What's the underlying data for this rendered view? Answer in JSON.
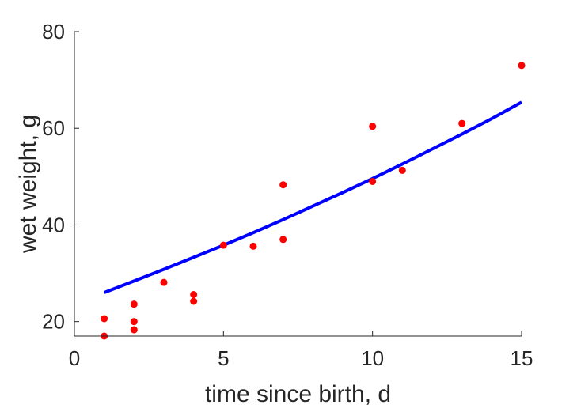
{
  "chart_data": {
    "type": "scatter",
    "title": "",
    "xlabel": "time since birth, d",
    "ylabel": "wet weight, g",
    "xlim": [
      0,
      15
    ],
    "ylim": [
      17,
      80
    ],
    "xticks": [
      0,
      5,
      10,
      15
    ],
    "yticks": [
      20,
      40,
      60,
      80
    ],
    "grid": false,
    "legend": "none",
    "series": [
      {
        "kind": "scatter",
        "color": "#ff0000",
        "points": [
          {
            "x": 1,
            "y": 20.6
          },
          {
            "x": 1,
            "y": 17.0
          },
          {
            "x": 2,
            "y": 23.6
          },
          {
            "x": 2,
            "y": 20.0
          },
          {
            "x": 2,
            "y": 18.3
          },
          {
            "x": 3,
            "y": 28.1
          },
          {
            "x": 4,
            "y": 25.6
          },
          {
            "x": 4,
            "y": 24.2
          },
          {
            "x": 5,
            "y": 35.8
          },
          {
            "x": 6,
            "y": 35.6
          },
          {
            "x": 7,
            "y": 48.3
          },
          {
            "x": 7,
            "y": 37.0
          },
          {
            "x": 10,
            "y": 60.4
          },
          {
            "x": 10,
            "y": 49.0
          },
          {
            "x": 11,
            "y": 51.3
          },
          {
            "x": 13,
            "y": 61.0
          },
          {
            "x": 15,
            "y": 73.0
          }
        ]
      },
      {
        "kind": "line",
        "color": "#0000ff",
        "points": [
          {
            "x": 1,
            "y": 26.0
          },
          {
            "x": 2,
            "y": 28.4
          },
          {
            "x": 3,
            "y": 30.8
          },
          {
            "x": 4,
            "y": 33.3
          },
          {
            "x": 5,
            "y": 35.8
          },
          {
            "x": 6,
            "y": 38.4
          },
          {
            "x": 7,
            "y": 41.1
          },
          {
            "x": 8,
            "y": 43.9
          },
          {
            "x": 9,
            "y": 46.7
          },
          {
            "x": 10,
            "y": 49.6
          },
          {
            "x": 11,
            "y": 52.6
          },
          {
            "x": 12,
            "y": 55.7
          },
          {
            "x": 13,
            "y": 58.8
          },
          {
            "x": 14,
            "y": 62.0
          },
          {
            "x": 15,
            "y": 65.4
          }
        ]
      }
    ]
  }
}
